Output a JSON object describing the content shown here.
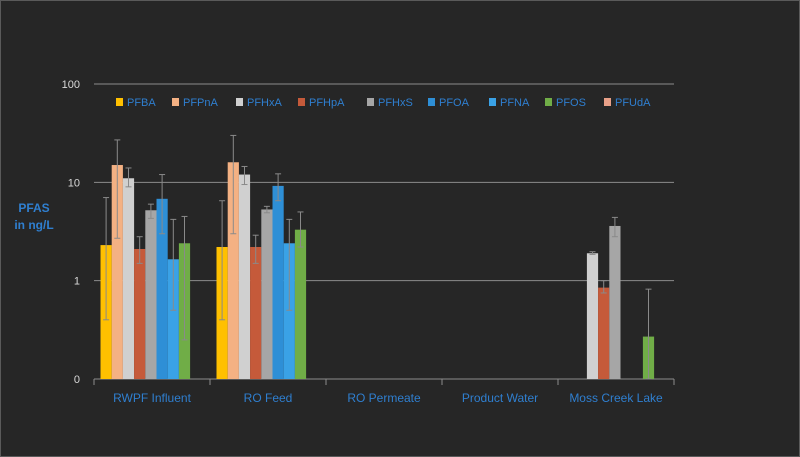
{
  "chart_data": {
    "type": "bar",
    "title": "",
    "ylabel_lines": [
      "PFAS",
      "in ng/L"
    ],
    "xlabel": "",
    "yscale": "log",
    "ylim": [
      0.1,
      100
    ],
    "yticks": [
      {
        "value": 100,
        "label": "100"
      },
      {
        "value": 10,
        "label": "10"
      },
      {
        "value": 1,
        "label": "1"
      },
      {
        "value": 0.1,
        "label": "0"
      }
    ],
    "categories": [
      "RWPF Influent",
      "RO Feed",
      "RO Permeate",
      "Product Water",
      "Moss Creek Lake"
    ],
    "legend_position": "top",
    "series": [
      {
        "name": "PFBA",
        "color": "#ffc000",
        "values": [
          2.3,
          2.2,
          null,
          null,
          null
        ],
        "errors": [
          [
            0.4,
            7.0
          ],
          [
            0.4,
            6.5
          ],
          null,
          null,
          null
        ]
      },
      {
        "name": "PFPnA",
        "color": "#f4b183",
        "values": [
          15.0,
          16.0,
          null,
          null,
          null
        ],
        "errors": [
          [
            2.7,
            27.0
          ],
          [
            3.0,
            30.0
          ],
          null,
          null,
          null
        ]
      },
      {
        "name": "PFHxA",
        "color": "#d0d0d0",
        "values": [
          11.0,
          12.0,
          null,
          null,
          1.9
        ],
        "errors": [
          [
            9.0,
            14.0
          ],
          [
            9.5,
            14.5
          ],
          null,
          null,
          [
            1.85,
            1.97
          ]
        ]
      },
      {
        "name": "PFHpA",
        "color": "#c55a3a",
        "values": [
          2.1,
          2.2,
          null,
          null,
          0.85
        ],
        "errors": [
          [
            1.5,
            2.8
          ],
          [
            1.5,
            2.9
          ],
          null,
          null,
          [
            0.75,
            1.0
          ]
        ]
      },
      {
        "name": "PFHxS",
        "color": "#a6a6a6",
        "values": [
          5.2,
          5.3,
          null,
          null,
          3.6
        ],
        "errors": [
          [
            4.3,
            6.0
          ],
          [
            4.9,
            5.7
          ],
          null,
          null,
          [
            2.8,
            4.4
          ]
        ]
      },
      {
        "name": "PFOA",
        "color": "#2e8fd6",
        "values": [
          6.8,
          9.2,
          null,
          null,
          null
        ],
        "errors": [
          [
            3.0,
            12.0
          ],
          [
            6.5,
            12.2
          ],
          null,
          null,
          null
        ]
      },
      {
        "name": "PFNA",
        "color": "#3aa2e6",
        "values": [
          1.65,
          2.4,
          null,
          null,
          null
        ],
        "errors": [
          [
            0.5,
            4.2
          ],
          [
            0.5,
            4.2
          ],
          null,
          null,
          null
        ]
      },
      {
        "name": "PFOS",
        "color": "#70ad47",
        "values": [
          2.4,
          3.3,
          null,
          null,
          0.27
        ],
        "errors": [
          [
            0.25,
            4.5
          ],
          [
            2.2,
            5.0
          ],
          null,
          null,
          [
            0.1,
            0.82
          ]
        ]
      },
      {
        "name": "PFUdA",
        "color": "#e8a088",
        "values": [
          null,
          null,
          null,
          null,
          null
        ],
        "errors": [
          null,
          null,
          null,
          null,
          null
        ]
      }
    ]
  }
}
